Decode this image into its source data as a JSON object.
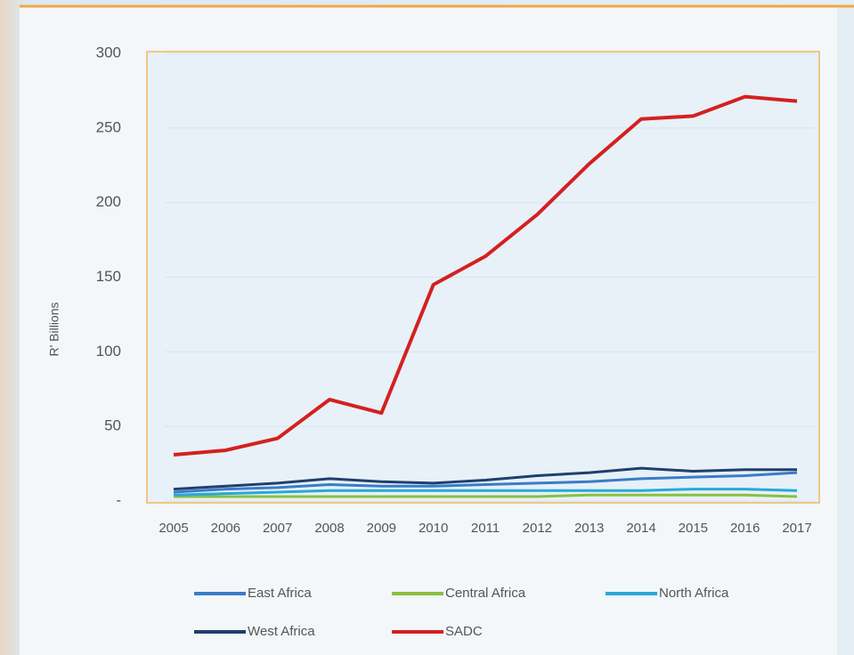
{
  "chart_data": {
    "type": "line",
    "y_label": "R' Billions",
    "categories": [
      "2005",
      "2006",
      "2007",
      "2008",
      "2009",
      "2010",
      "2011",
      "2012",
      "2013",
      "2014",
      "2015",
      "2016",
      "2017"
    ],
    "series": [
      {
        "name": "East Africa",
        "color": "#3a7cc8",
        "values": [
          6,
          8,
          9,
          11,
          10,
          10,
          11,
          12,
          13,
          15,
          16,
          17,
          19
        ]
      },
      {
        "name": "Central Africa",
        "color": "#8cbf3f",
        "values": [
          3,
          3,
          3,
          3,
          3,
          3,
          3,
          3,
          4,
          4,
          4,
          4,
          3
        ]
      },
      {
        "name": "North Africa",
        "color": "#29a8d8",
        "values": [
          4,
          5,
          6,
          7,
          7,
          7,
          7,
          7,
          7,
          7,
          8,
          8,
          7
        ]
      },
      {
        "name": "West Africa",
        "color": "#1f3f6e",
        "values": [
          8,
          10,
          12,
          15,
          13,
          12,
          14,
          17,
          19,
          22,
          20,
          21,
          21
        ]
      },
      {
        "name": "SADC",
        "color": "#d42020",
        "values": [
          31,
          34,
          42,
          68,
          59,
          145,
          164,
          192,
          226,
          256,
          258,
          271,
          268
        ]
      }
    ],
    "ylim": [
      0,
      300
    ],
    "yticks": [
      {
        "value": 0,
        "label": "-"
      },
      50,
      100,
      150,
      200,
      250,
      300
    ],
    "grid": true
  }
}
